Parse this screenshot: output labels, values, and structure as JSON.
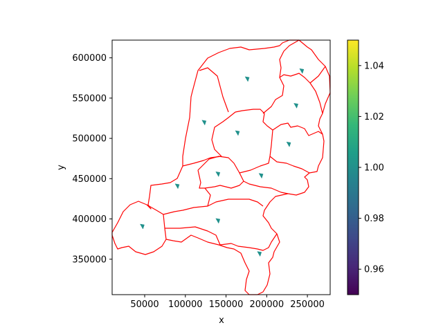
{
  "chart_data": [
    {
      "type": "map",
      "title": "",
      "xlabel": "x",
      "ylabel": "y",
      "xlim": [
        10000,
        278000
      ],
      "ylim": [
        306000,
        622000
      ],
      "x_ticks": [
        {
          "value": 50000,
          "label": "50000"
        },
        {
          "value": 100000,
          "label": "100000"
        },
        {
          "value": 150000,
          "label": "150000"
        },
        {
          "value": 200000,
          "label": "200000"
        },
        {
          "value": 250000,
          "label": "250000"
        }
      ],
      "y_ticks": [
        {
          "value": 350000,
          "label": "350000"
        },
        {
          "value": 400000,
          "label": "400000"
        },
        {
          "value": 450000,
          "label": "450000"
        },
        {
          "value": 500000,
          "label": "500000"
        },
        {
          "value": 550000,
          "label": "550000"
        },
        {
          "value": 600000,
          "label": "600000"
        }
      ],
      "boundary_color": "#ff0000",
      "grid": false,
      "arrow_color": "#21918c",
      "arrow_value": 1.0,
      "arrows": [
        {
          "x": 176000,
          "y": 574000
        },
        {
          "x": 243000,
          "y": 584000
        },
        {
          "x": 236000,
          "y": 541000
        },
        {
          "x": 123000,
          "y": 520000
        },
        {
          "x": 164000,
          "y": 507000
        },
        {
          "x": 227000,
          "y": 493000
        },
        {
          "x": 140000,
          "y": 456000
        },
        {
          "x": 193000,
          "y": 454000
        },
        {
          "x": 90000,
          "y": 441000
        },
        {
          "x": 47000,
          "y": 391000
        },
        {
          "x": 140000,
          "y": 398000
        },
        {
          "x": 191000,
          "y": 357000
        }
      ]
    },
    {
      "type": "colorbar",
      "colormap": "viridis",
      "range": [
        0.95,
        1.05
      ],
      "ticks": [
        {
          "value": 0.96,
          "label": "0.96"
        },
        {
          "value": 0.98,
          "label": "0.98"
        },
        {
          "value": 1.0,
          "label": "1.00"
        },
        {
          "value": 1.02,
          "label": "1.02"
        },
        {
          "value": 1.04,
          "label": "1.04"
        }
      ],
      "colors": [
        "#440154",
        "#482878",
        "#3e4989",
        "#31688e",
        "#26828e",
        "#1f9e89",
        "#35b779",
        "#6ece58",
        "#b5de2b",
        "#fde725"
      ]
    }
  ]
}
